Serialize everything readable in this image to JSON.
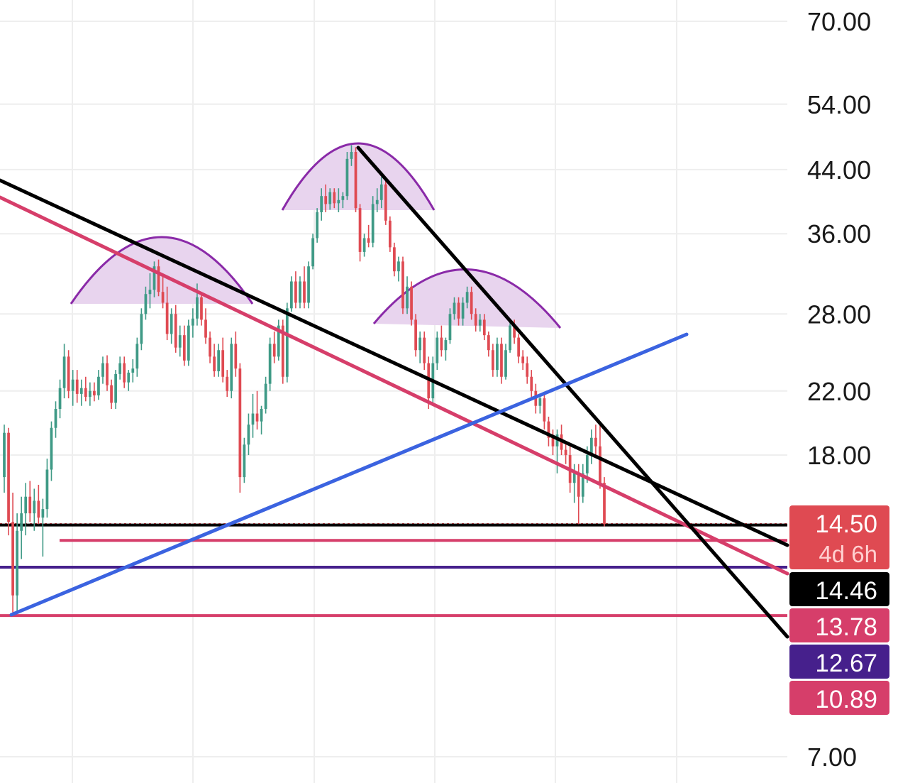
{
  "chart_data": {
    "type": "candlestick",
    "y_scale": "log",
    "y_range": [
      6.5,
      78
    ],
    "y_ticks": [
      "70.00",
      "54.00",
      "44.00",
      "36.00",
      "28.00",
      "22.00",
      "18.00",
      "7.00"
    ],
    "grid": true,
    "price_badges": [
      {
        "value": "14.50",
        "sub": "4d 6h",
        "bg": "#df4a52",
        "fg": "#ffffff",
        "sub_fg": "#ffd0d0"
      },
      {
        "value": "14.46",
        "bg": "#000000",
        "fg": "#ffffff"
      },
      {
        "value": "13.78",
        "bg": "#d63e6a",
        "fg": "#ffffff"
      },
      {
        "value": "12.67",
        "bg": "#46208c",
        "fg": "#ffffff"
      },
      {
        "value": "10.89",
        "bg": "#d63e6a",
        "fg": "#ffffff"
      }
    ],
    "horizontal_levels": [
      {
        "price": 14.5,
        "color": "#df4a52",
        "style": "dotted"
      },
      {
        "price": 14.46,
        "color": "#000000",
        "style": "solid"
      },
      {
        "price": 13.78,
        "color": "#d63e6a",
        "style": "solid"
      },
      {
        "price": 12.67,
        "color": "#46208c",
        "style": "solid"
      },
      {
        "price": 10.89,
        "color": "#d63e6a",
        "style": "solid"
      }
    ],
    "trendlines": [
      {
        "name": "falling-resistance",
        "color": "#000000"
      },
      {
        "name": "falling-support",
        "color": "#d63e6a"
      },
      {
        "name": "steep-resistance",
        "color": "#000000"
      },
      {
        "name": "rising-support",
        "color": "#3b63e0"
      }
    ],
    "patterns": [
      "left-shoulder",
      "head",
      "right-shoulder"
    ],
    "colors": {
      "up": "#3f9a86",
      "down": "#df4a52",
      "grid": "#eeeeee",
      "pattern_fill": "#e8d4ee",
      "pattern_stroke": "#8a2aa8",
      "axis_text": "#1a1a1a"
    },
    "candles": [
      [
        16.8,
        19.8,
        16.0,
        19.3
      ],
      [
        19.3,
        19.6,
        14.0,
        14.6
      ],
      [
        14.6,
        16.0,
        11.0,
        11.6
      ],
      [
        11.6,
        15.0,
        11.0,
        14.2
      ],
      [
        14.2,
        15.8,
        13.0,
        15.0
      ],
      [
        15.0,
        16.5,
        14.0,
        15.8
      ],
      [
        15.8,
        16.6,
        14.6,
        15.0
      ],
      [
        15.0,
        16.2,
        14.2,
        15.6
      ],
      [
        15.6,
        16.4,
        14.5,
        14.8
      ],
      [
        14.8,
        15.7,
        13.1,
        15.2
      ],
      [
        15.2,
        17.8,
        14.8,
        17.2
      ],
      [
        17.2,
        20.0,
        16.6,
        19.6
      ],
      [
        19.6,
        21.3,
        19.0,
        20.8
      ],
      [
        20.8,
        22.8,
        20.2,
        22.2
      ],
      [
        22.2,
        25.5,
        21.5,
        24.5
      ],
      [
        24.5,
        25.0,
        21.5,
        22.0
      ],
      [
        22.0,
        23.5,
        21.0,
        22.8
      ],
      [
        22.8,
        23.5,
        21.2,
        21.8
      ],
      [
        21.8,
        22.8,
        21.0,
        22.2
      ],
      [
        22.2,
        23.0,
        21.3,
        21.6
      ],
      [
        21.6,
        22.6,
        21.0,
        22.0
      ],
      [
        22.0,
        22.6,
        21.3,
        21.7
      ],
      [
        21.7,
        23.5,
        21.4,
        23.0
      ],
      [
        23.0,
        24.5,
        22.5,
        24.0
      ],
      [
        24.0,
        24.6,
        22.0,
        22.4
      ],
      [
        22.4,
        22.8,
        20.8,
        21.2
      ],
      [
        21.2,
        23.5,
        20.8,
        23.2
      ],
      [
        23.2,
        24.5,
        22.8,
        24.0
      ],
      [
        24.0,
        24.5,
        22.2,
        22.6
      ],
      [
        22.6,
        23.5,
        22.0,
        23.3
      ],
      [
        23.3,
        24.3,
        22.6,
        23.6
      ],
      [
        23.6,
        26.0,
        23.0,
        25.5
      ],
      [
        25.5,
        28.5,
        25.0,
        28.0
      ],
      [
        28.0,
        30.5,
        27.5,
        29.8
      ],
      [
        29.8,
        31.8,
        28.5,
        30.2
      ],
      [
        30.2,
        33.0,
        29.5,
        32.5
      ],
      [
        32.5,
        33.2,
        29.6,
        30.0
      ],
      [
        30.0,
        31.5,
        28.5,
        29.0
      ],
      [
        29.0,
        30.5,
        25.8,
        26.3
      ],
      [
        26.3,
        28.5,
        25.5,
        28.0
      ],
      [
        28.0,
        28.8,
        24.8,
        25.2
      ],
      [
        25.2,
        27.0,
        24.5,
        26.2
      ],
      [
        26.2,
        27.0,
        23.8,
        24.2
      ],
      [
        24.2,
        27.5,
        23.8,
        27.0
      ],
      [
        27.0,
        28.5,
        26.0,
        27.6
      ],
      [
        27.6,
        30.8,
        27.0,
        29.5
      ],
      [
        29.5,
        30.0,
        27.0,
        27.5
      ],
      [
        27.5,
        28.5,
        25.5,
        26.0
      ],
      [
        26.0,
        26.5,
        24.0,
        24.5
      ],
      [
        24.5,
        25.5,
        23.0,
        23.4
      ],
      [
        23.4,
        25.5,
        23.0,
        25.0
      ],
      [
        25.0,
        26.0,
        22.6,
        23.0
      ],
      [
        23.0,
        23.5,
        21.6,
        22.0
      ],
      [
        22.0,
        26.0,
        21.5,
        25.5
      ],
      [
        25.5,
        26.5,
        23.0,
        23.6
      ],
      [
        23.6,
        24.0,
        16.0,
        16.8
      ],
      [
        16.8,
        19.0,
        16.5,
        18.6
      ],
      [
        18.6,
        20.5,
        18.0,
        19.8
      ],
      [
        19.8,
        21.8,
        19.0,
        20.5
      ],
      [
        20.5,
        22.0,
        19.5,
        20.0
      ],
      [
        20.0,
        21.0,
        19.2,
        20.8
      ],
      [
        20.8,
        23.0,
        20.5,
        22.5
      ],
      [
        22.5,
        26.0,
        22.0,
        25.5
      ],
      [
        25.5,
        26.5,
        24.0,
        24.5
      ],
      [
        24.5,
        27.5,
        24.2,
        27.0
      ],
      [
        27.0,
        27.5,
        22.5,
        23.0
      ],
      [
        23.0,
        29.0,
        22.6,
        28.5
      ],
      [
        28.5,
        31.5,
        28.2,
        31.0
      ],
      [
        31.0,
        32.0,
        28.5,
        29.0
      ],
      [
        29.0,
        31.5,
        28.5,
        31.0
      ],
      [
        31.0,
        32.5,
        28.5,
        29.0
      ],
      [
        29.0,
        33.0,
        28.5,
        32.5
      ],
      [
        32.5,
        36.0,
        32.2,
        35.5
      ],
      [
        35.5,
        39.0,
        35.0,
        38.5
      ],
      [
        38.5,
        41.5,
        37.5,
        40.5
      ],
      [
        40.5,
        42.0,
        38.5,
        39.5
      ],
      [
        39.5,
        41.5,
        38.8,
        41.0
      ],
      [
        41.0,
        41.5,
        39.0,
        39.6
      ],
      [
        39.6,
        41.5,
        38.5,
        40.0
      ],
      [
        40.0,
        41.0,
        39.0,
        40.5
      ],
      [
        40.5,
        46.5,
        40.0,
        45.5
      ],
      [
        45.5,
        47.5,
        44.5,
        46.5
      ],
      [
        46.5,
        47.2,
        38.5,
        39.0
      ],
      [
        39.0,
        39.5,
        33.0,
        34.0
      ],
      [
        34.0,
        36.0,
        33.5,
        35.5
      ],
      [
        35.5,
        37.0,
        34.5,
        35.0
      ],
      [
        35.0,
        40.5,
        34.5,
        39.5
      ],
      [
        39.5,
        41.5,
        38.5,
        40.0
      ],
      [
        40.0,
        43.0,
        39.0,
        42.0
      ],
      [
        42.0,
        42.5,
        37.0,
        37.5
      ],
      [
        37.5,
        38.0,
        34.0,
        34.5
      ],
      [
        34.5,
        35.0,
        31.5,
        32.0
      ],
      [
        32.0,
        33.5,
        31.0,
        33.0
      ],
      [
        33.0,
        33.5,
        28.0,
        28.5
      ],
      [
        28.5,
        31.5,
        28.0,
        30.5
      ],
      [
        30.5,
        31.0,
        27.0,
        27.5
      ],
      [
        27.5,
        28.0,
        24.5,
        25.0
      ],
      [
        25.0,
        26.5,
        24.0,
        26.0
      ],
      [
        26.0,
        26.5,
        23.5,
        24.0
      ],
      [
        24.0,
        24.5,
        20.8,
        21.5
      ],
      [
        21.5,
        24.5,
        21.0,
        24.0
      ],
      [
        24.0,
        26.5,
        23.5,
        26.0
      ],
      [
        26.0,
        27.0,
        24.5,
        25.0
      ],
      [
        25.0,
        26.0,
        24.2,
        25.8
      ],
      [
        25.8,
        28.5,
        25.5,
        28.0
      ],
      [
        28.0,
        29.5,
        27.5,
        29.0
      ],
      [
        29.0,
        29.5,
        27.0,
        27.6
      ],
      [
        27.6,
        29.5,
        27.0,
        29.0
      ],
      [
        29.0,
        30.5,
        28.5,
        30.0
      ],
      [
        30.0,
        30.5,
        27.5,
        28.0
      ],
      [
        28.0,
        28.5,
        26.5,
        27.0
      ],
      [
        27.0,
        28.0,
        26.5,
        27.5
      ],
      [
        27.5,
        28.0,
        25.8,
        26.2
      ],
      [
        26.2,
        26.5,
        24.5,
        25.0
      ],
      [
        25.0,
        25.5,
        23.0,
        23.5
      ],
      [
        23.5,
        26.0,
        23.0,
        25.5
      ],
      [
        25.5,
        26.0,
        22.5,
        23.0
      ],
      [
        23.0,
        25.5,
        22.8,
        25.0
      ],
      [
        25.0,
        27.5,
        24.8,
        27.0
      ],
      [
        27.0,
        27.5,
        25.5,
        26.0
      ],
      [
        26.0,
        26.3,
        24.0,
        24.5
      ],
      [
        24.5,
        25.0,
        23.5,
        24.0
      ],
      [
        24.0,
        24.5,
        22.5,
        23.0
      ],
      [
        23.0,
        23.5,
        21.5,
        22.0
      ],
      [
        22.0,
        22.5,
        20.5,
        21.0
      ],
      [
        21.0,
        21.8,
        20.5,
        21.5
      ],
      [
        21.5,
        21.8,
        19.5,
        20.0
      ],
      [
        20.0,
        20.3,
        18.5,
        19.0
      ],
      [
        19.0,
        19.5,
        18.0,
        18.5
      ],
      [
        18.5,
        19.5,
        17.0,
        19.2
      ],
      [
        19.2,
        19.8,
        18.0,
        18.3
      ],
      [
        18.3,
        18.8,
        17.5,
        18.0
      ],
      [
        18.0,
        18.5,
        16.0,
        16.5
      ],
      [
        16.5,
        17.5,
        15.5,
        17.0
      ],
      [
        17.0,
        17.5,
        14.5,
        15.8
      ],
      [
        15.8,
        17.5,
        15.5,
        17.0
      ],
      [
        17.0,
        18.5,
        16.5,
        18.0
      ],
      [
        18.0,
        19.5,
        17.5,
        19.0
      ],
      [
        19.0,
        19.8,
        18.0,
        18.5
      ],
      [
        18.5,
        19.8,
        16.2,
        16.5
      ],
      [
        16.5,
        16.8,
        14.4,
        14.5
      ]
    ]
  }
}
